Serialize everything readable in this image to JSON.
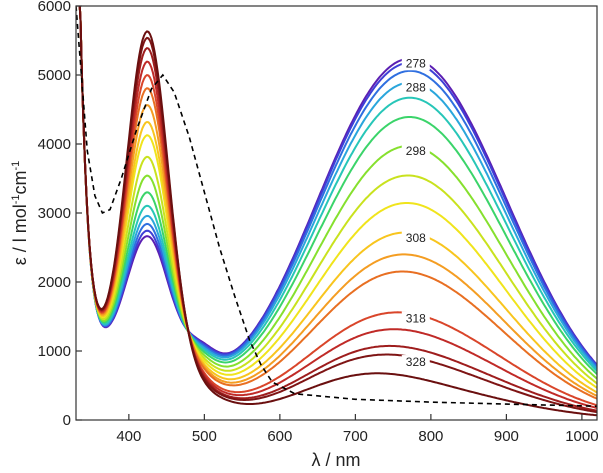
{
  "chart_data": {
    "type": "line",
    "title": "",
    "xlabel": "λ / nm",
    "ylabel_parts": [
      "ε / l mol",
      "-1",
      "cm",
      "-1"
    ],
    "xlim": [
      330,
      1020
    ],
    "ylim": [
      0,
      6000
    ],
    "xticks": [
      400,
      500,
      600,
      700,
      800,
      900,
      1000
    ],
    "yticks": [
      0,
      1000,
      2000,
      3000,
      4000,
      5000,
      6000
    ],
    "grid": false,
    "legend": "none",
    "colors": [
      "#5b1fb3",
      "#3f3fd6",
      "#2f6fe0",
      "#2aa6dc",
      "#27c6b8",
      "#3bd46a",
      "#86e02e",
      "#c9e21e",
      "#f0e41c",
      "#f8c51e",
      "#f49d22",
      "#e86f22",
      "#d9452a",
      "#c02a27",
      "#9e1d1d",
      "#7e1414",
      "#6a0f0f"
    ],
    "reference": {
      "name": "",
      "color": "#000000",
      "dashed": true,
      "points": [
        [
          330,
          6000
        ],
        [
          345,
          3900
        ],
        [
          355,
          3250
        ],
        [
          365,
          3000
        ],
        [
          375,
          3050
        ],
        [
          390,
          3500
        ],
        [
          410,
          4200
        ],
        [
          430,
          4800
        ],
        [
          445,
          5000
        ],
        [
          460,
          4750
        ],
        [
          480,
          4100
        ],
        [
          500,
          3300
        ],
        [
          520,
          2500
        ],
        [
          540,
          1800
        ],
        [
          560,
          1150
        ],
        [
          575,
          800
        ],
        [
          590,
          550
        ],
        [
          620,
          380
        ],
        [
          700,
          300
        ],
        [
          800,
          260
        ],
        [
          900,
          230
        ],
        [
          1020,
          200
        ]
      ]
    },
    "series": [
      {
        "label": "278",
        "red_peak": 2600,
        "nir_peak": 5050
      },
      {
        "label": "",
        "red_peak": 2680,
        "nir_peak": 4990
      },
      {
        "label": "",
        "red_peak": 2780,
        "nir_peak": 4870
      },
      {
        "label": "288",
        "red_peak": 2900,
        "nir_peak": 4700
      },
      {
        "label": "",
        "red_peak": 3050,
        "nir_peak": 4480
      },
      {
        "label": "",
        "red_peak": 3250,
        "nir_peak": 4200
      },
      {
        "label": "298",
        "red_peak": 3500,
        "nir_peak": 3780
      },
      {
        "label": "",
        "red_peak": 3780,
        "nir_peak": 3350
      },
      {
        "label": "",
        "red_peak": 4100,
        "nir_peak": 2950
      },
      {
        "label": "308",
        "red_peak": 4300,
        "nir_peak": 2520
      },
      {
        "label": "",
        "red_peak": 4550,
        "nir_peak": 2200
      },
      {
        "label": "",
        "red_peak": 4800,
        "nir_peak": 1950
      },
      {
        "label": "318",
        "red_peak": 5000,
        "nir_peak": 1350
      },
      {
        "label": "",
        "red_peak": 5200,
        "nir_peak": 1100
      },
      {
        "label": "",
        "red_peak": 5400,
        "nir_peak": 850
      },
      {
        "label": "328",
        "red_peak": 5550,
        "nir_peak": 720
      },
      {
        "label": "",
        "red_peak": 5650,
        "nir_peak": 430
      }
    ]
  }
}
